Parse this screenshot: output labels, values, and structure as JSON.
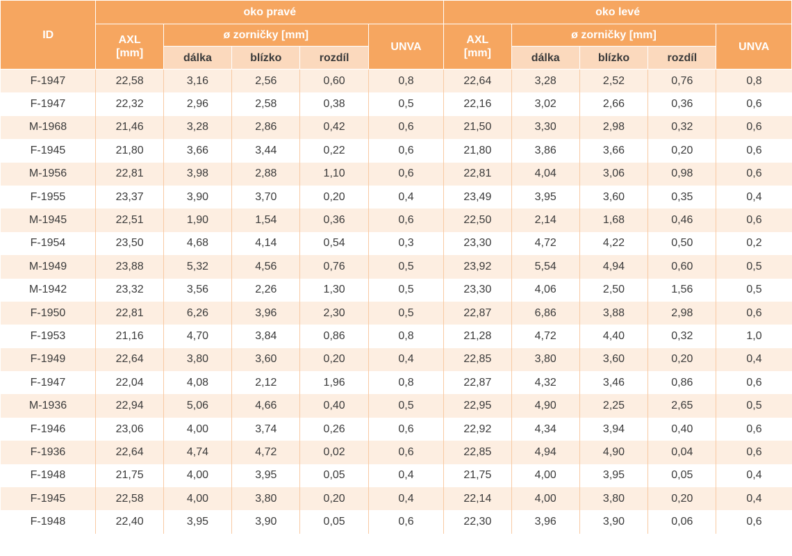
{
  "header": {
    "id": "ID",
    "right_eye": "oko pravé",
    "left_eye": "oko levé",
    "axl": "AXL",
    "axl_unit": "[mm]",
    "pupil": "ø zorničky [mm]",
    "distance": "dálka",
    "near": "blízko",
    "difference": "rozdíl",
    "unva": "UNVA"
  },
  "rows": [
    [
      "F-1947",
      "22,58",
      "3,16",
      "2,56",
      "0,60",
      "0,8",
      "22,64",
      "3,28",
      "2,52",
      "0,76",
      "0,8"
    ],
    [
      "F-1947",
      "22,32",
      "2,96",
      "2,58",
      "0,38",
      "0,5",
      "22,16",
      "3,02",
      "2,66",
      "0,36",
      "0,6"
    ],
    [
      "M-1968",
      "21,46",
      "3,28",
      "2,86",
      "0,42",
      "0,6",
      "21,50",
      "3,30",
      "2,98",
      "0,32",
      "0,6"
    ],
    [
      "F-1945",
      "21,80",
      "3,66",
      "3,44",
      "0,22",
      "0,6",
      "21,80",
      "3,86",
      "3,66",
      "0,20",
      "0,6"
    ],
    [
      "M-1956",
      "22,81",
      "3,98",
      "2,88",
      "1,10",
      "0,6",
      "22,81",
      "4,04",
      "3,06",
      "0,98",
      "0,6"
    ],
    [
      "F-1955",
      "23,37",
      "3,90",
      "3,70",
      "0,20",
      "0,4",
      "23,49",
      "3,95",
      "3,60",
      "0,35",
      "0,4"
    ],
    [
      "M-1945",
      "22,51",
      "1,90",
      "1,54",
      "0,36",
      "0,6",
      "22,50",
      "2,14",
      "1,68",
      "0,46",
      "0,6"
    ],
    [
      "F-1954",
      "23,50",
      "4,68",
      "4,14",
      "0,54",
      "0,3",
      "23,30",
      "4,72",
      "4,22",
      "0,50",
      "0,2"
    ],
    [
      "M-1949",
      "23,88",
      "5,32",
      "4,56",
      "0,76",
      "0,5",
      "23,92",
      "5,54",
      "4,94",
      "0,60",
      "0,5"
    ],
    [
      "M-1942",
      "23,32",
      "3,56",
      "2,26",
      "1,30",
      "0,5",
      "23,30",
      "4,06",
      "2,50",
      "1,56",
      "0,5"
    ],
    [
      "F-1950",
      "22,81",
      "6,26",
      "3,96",
      "2,30",
      "0,5",
      "22,87",
      "6,86",
      "3,88",
      "2,98",
      "0,6"
    ],
    [
      "F-1953",
      "21,16",
      "4,70",
      "3,84",
      "0,86",
      "0,8",
      "21,28",
      "4,72",
      "4,40",
      "0,32",
      "1,0"
    ],
    [
      "F-1949",
      "22,64",
      "3,80",
      "3,60",
      "0,20",
      "0,4",
      "22,85",
      "3,80",
      "3,60",
      "0,20",
      "0,4"
    ],
    [
      "F-1947",
      "22,04",
      "4,08",
      "2,12",
      "1,96",
      "0,8",
      "22,87",
      "4,32",
      "3,46",
      "0,86",
      "0,6"
    ],
    [
      "M-1936",
      "22,94",
      "5,06",
      "4,66",
      "0,40",
      "0,5",
      "22,95",
      "4,90",
      "2,25",
      "2,65",
      "0,5"
    ],
    [
      "F-1946",
      "23,06",
      "4,00",
      "3,74",
      "0,26",
      "0,6",
      "22,92",
      "4,34",
      "3,94",
      "0,40",
      "0,6"
    ],
    [
      "F-1936",
      "22,64",
      "4,74",
      "4,72",
      "0,02",
      "0,6",
      "22,85",
      "4,94",
      "4,90",
      "0,04",
      "0,6"
    ],
    [
      "F-1948",
      "21,75",
      "4,00",
      "3,95",
      "0,05",
      "0,4",
      "21,75",
      "4,00",
      "3,95",
      "0,05",
      "0,4"
    ],
    [
      "F-1945",
      "22,58",
      "4,00",
      "3,80",
      "0,20",
      "0,4",
      "22,14",
      "4,00",
      "3,80",
      "0,20",
      "0,4"
    ],
    [
      "F-1948",
      "22,40",
      "3,95",
      "3,90",
      "0,05",
      "0,6",
      "22,30",
      "3,96",
      "3,90",
      "0,06",
      "0,6"
    ]
  ],
  "colors": {
    "header_bg": "#f6a660",
    "subheader_bg": "#fbd9bd",
    "row_tint": "#fdeee1"
  }
}
